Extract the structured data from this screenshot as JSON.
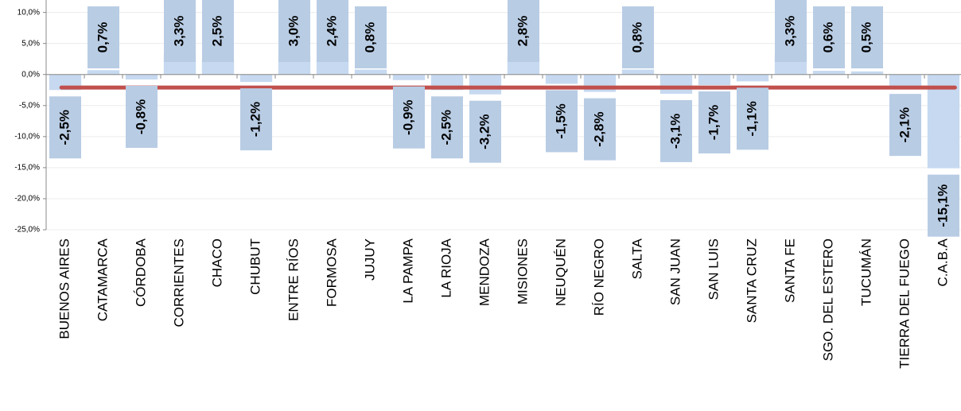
{
  "chart_data": {
    "type": "bar",
    "categories": [
      "BUENOS AIRES",
      "CATAMARCA",
      "CÓRDOBA",
      "CORRIENTES",
      "CHACO",
      "CHUBUT",
      "ENTRE RÍOS",
      "FORMOSA",
      "JUJUY",
      "LA PAMPA",
      "LA RIOJA",
      "MENDOZA",
      "MISIONES",
      "NEUQUÉN",
      "RÍO NEGRO",
      "SALTA",
      "SAN JUAN",
      "SAN LUIS",
      "SANTA CRUZ",
      "SANTA FE",
      "SGO. DEL ESTERO",
      "TUCUMÁN",
      "TIERRA DEL FUEGO",
      "C.A.B.A"
    ],
    "values": [
      -2.5,
      0.7,
      -0.8,
      3.3,
      2.5,
      -1.2,
      3.0,
      2.4,
      0.8,
      -0.9,
      -2.5,
      -3.2,
      2.8,
      -1.5,
      -2.8,
      0.8,
      -3.1,
      -1.7,
      -1.1,
      3.3,
      0.6,
      0.5,
      -2.1,
      -15.1
    ],
    "value_labels": [
      "-2,5%",
      "0,7%",
      "-0,8%",
      "3,3%",
      "2,5%",
      "-1,2%",
      "3,0%",
      "2,4%",
      "0,8%",
      "-0,9%",
      "-2,5%",
      "-3,2%",
      "2,8%",
      "-1,5%",
      "-2,8%",
      "0,8%",
      "-3,1%",
      "-1,7%",
      "-1,1%",
      "3,3%",
      "0,6%",
      "0,5%",
      "-2,1%",
      "-15,1%"
    ],
    "color": "#c6d9f0",
    "label_box_color": "#b8cce4",
    "reference_line": -2.1,
    "reference_line_color": "#c0504d",
    "ylim": [
      -25,
      12
    ],
    "yticks": [
      {
        "value": -25,
        "label": "-25,0%"
      },
      {
        "value": -20,
        "label": "-20,0%"
      },
      {
        "value": -15,
        "label": "-15,0%"
      },
      {
        "value": -10,
        "label": "-10,0%"
      },
      {
        "value": -5,
        "label": "-5,0%"
      },
      {
        "value": 0,
        "label": "0,0%"
      },
      {
        "value": 5,
        "label": "5,0%"
      },
      {
        "value": 10,
        "label": "10,0%"
      }
    ],
    "grid": true
  }
}
